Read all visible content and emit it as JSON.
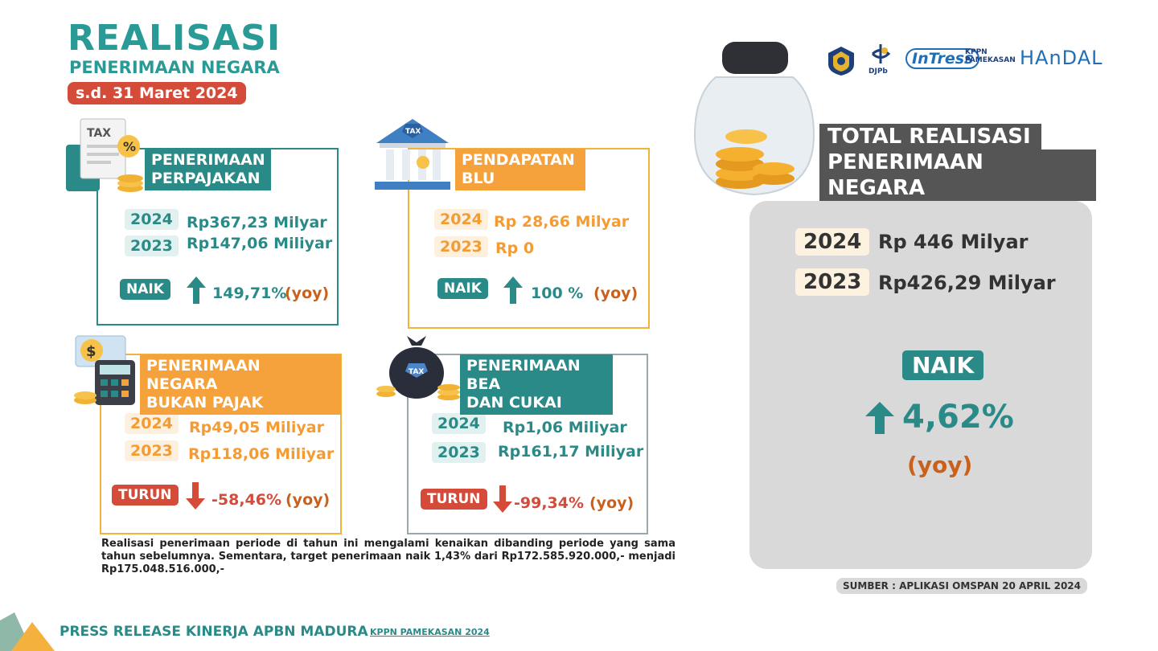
{
  "header": {
    "title": "REALISASI",
    "subtitle": "PENERIMAAN NEGARA",
    "date": "s.d. 31 Maret 2024"
  },
  "logos": {
    "djpb": "DJPb",
    "intress": "InTress",
    "kppn_line1": "KPPN",
    "kppn_line2": "PAMEKASAN",
    "handal": "HAnDAL"
  },
  "cards": {
    "perpajakan": {
      "title_line1": "PENERIMAAN",
      "title_line2": "PERPAJAKAN",
      "year1": "2024",
      "value1": "Rp367,23 Milyar",
      "year2": "2023",
      "value2": "Rp147,06 Miliyar",
      "badge": "NAIK",
      "pct": "149,71%",
      "yoy": "(yoy)"
    },
    "blu": {
      "title_line1": "PENDAPATAN",
      "title_line2": "BLU",
      "year1": "2024",
      "value1": "Rp 28,66 Milyar",
      "year2": "2023",
      "value2": "Rp 0",
      "badge": "NAIK",
      "pct": "100 %",
      "yoy": "(yoy)"
    },
    "pnbp": {
      "title_line1": "PENERIMAAN NEGARA",
      "title_line2": "BUKAN PAJAK",
      "year1": "2024",
      "value1": "Rp49,05 Miliyar",
      "year2": "2023",
      "value2": "Rp118,06 Miliyar",
      "badge": "TURUN",
      "pct": "-58,46%",
      "yoy": "(yoy)"
    },
    "beacukai": {
      "title_line1": "PENERIMAAN BEA",
      "title_line2": "DAN CUKAI",
      "year1": "2024",
      "value1": "Rp1,06 Miliyar",
      "year2": "2023",
      "value2": "Rp161,17 Miliyar",
      "badge": "TURUN",
      "pct": "-99,34%",
      "yoy": "(yoy)"
    }
  },
  "total": {
    "title_line1": "TOTAL REALISASI",
    "title_line2": "PENERIMAAN NEGARA",
    "year1": "2024",
    "value1": "Rp 446 Milyar",
    "year2": "2023",
    "value2": "Rp426,29 Milyar",
    "badge": "NAIK",
    "pct": "4,62%",
    "yoy": "(yoy)"
  },
  "note": "Realisasi penerimaan periode di tahun ini mengalami kenaikan dibanding periode yang sama tahun sebelumnya. Sementara, target penerimaan naik 1,43% dari Rp172.585.920.000,- menjadi Rp175.048.516.000,-",
  "source": "SUMBER : APLIKASI OMSPAN 20 APRIL 2024",
  "footer": {
    "title": "PRESS RELEASE KINERJA APBN MADURA",
    "subtitle": "KPPN PAMEKASAN 2024"
  },
  "colors": {
    "teal": "#2a8a87",
    "orange": "#f6a23c",
    "red": "#d44b3a",
    "grey": "#d9d9d9"
  },
  "icons": [
    "tax-document-icon",
    "bank-tax-icon",
    "money-calculator-icon",
    "tax-bag-icon",
    "coin-jar-icon",
    "arrow-up-icon",
    "arrow-down-icon"
  ]
}
